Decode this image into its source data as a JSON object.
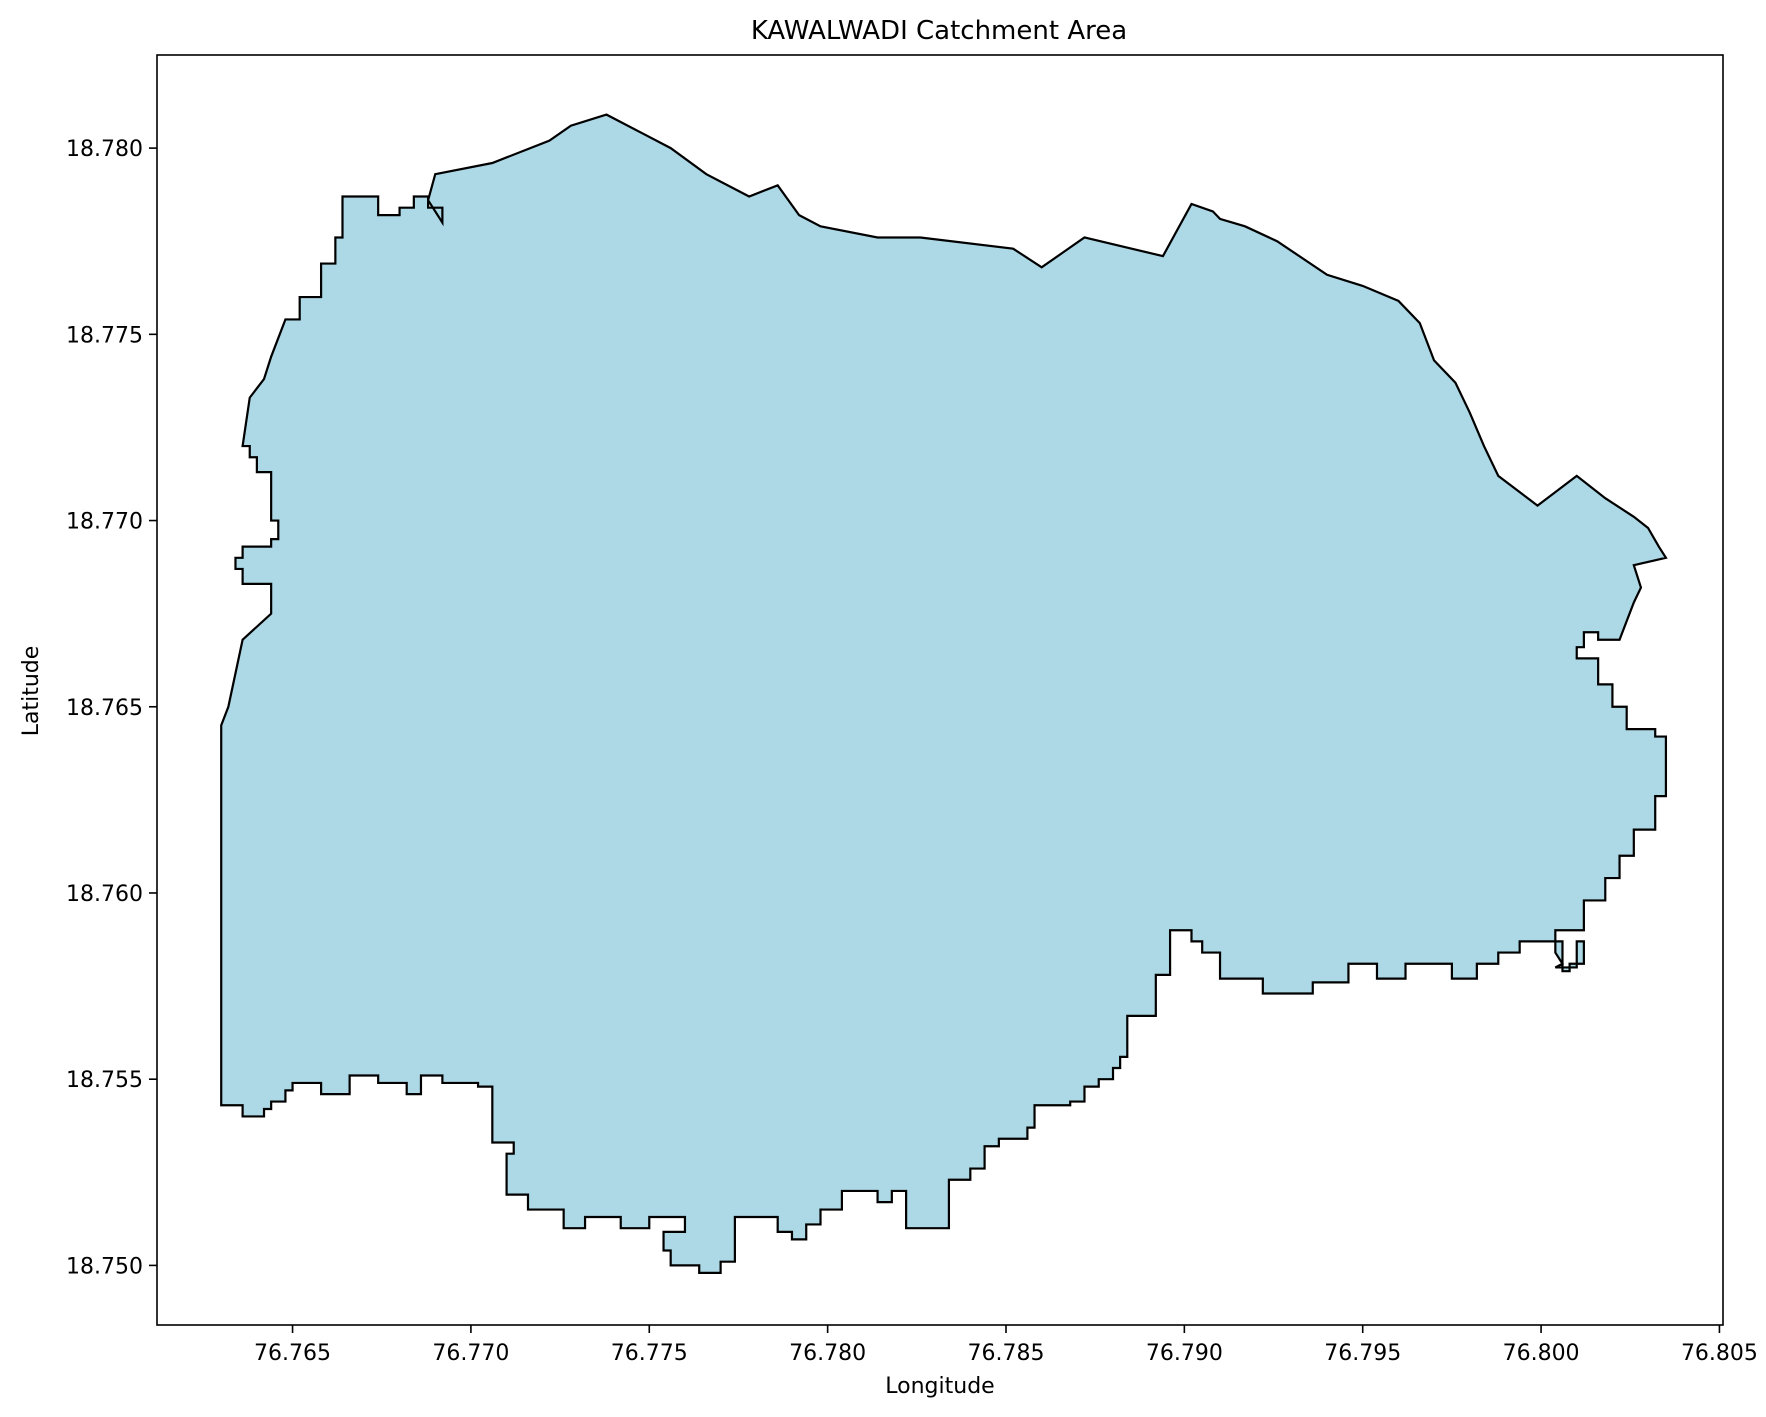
{
  "chart_data": {
    "type": "area",
    "title": "KAWALWADI Catchment Area",
    "xlabel": "Longitude",
    "ylabel": "Latitude",
    "xlim": [
      76.7612,
      76.8051
    ],
    "ylim": [
      18.7484,
      18.7825
    ],
    "xticks": [
      "76.765",
      "76.770",
      "76.775",
      "76.780",
      "76.785",
      "76.790",
      "76.795",
      "76.800",
      "76.805"
    ],
    "yticks": [
      "18.750",
      "18.755",
      "18.760",
      "18.765",
      "18.770",
      "18.775",
      "18.780"
    ],
    "grid": false,
    "fill_color": "#add8e6",
    "edge_color": "#000000",
    "series": [
      {
        "lon": [
          76.763,
          76.7632,
          76.7632,
          76.7636,
          76.7636,
          76.7642,
          76.7642,
          76.7644,
          76.7644,
          76.7648,
          76.7648,
          76.765,
          76.765,
          76.7658,
          76.7658,
          76.7666,
          76.7666,
          76.7674,
          76.7674,
          76.7682,
          76.7682,
          76.7686,
          76.7686,
          76.7692,
          76.7692,
          76.7702,
          76.7702,
          76.7706,
          76.7706,
          76.7712,
          76.7712,
          76.771,
          76.771,
          76.7716,
          76.7716,
          76.7726,
          76.7726,
          76.7732,
          76.7732,
          76.7736,
          76.7736,
          76.7742,
          76.7742,
          76.775,
          76.775,
          76.776,
          76.776,
          76.7754,
          76.7754,
          76.7756,
          76.7756,
          76.7764,
          76.7764,
          76.777,
          76.777,
          76.7774,
          76.7774,
          76.7786,
          76.7786,
          76.779,
          76.779,
          76.7794,
          76.7794,
          76.7798,
          76.7798,
          76.7804,
          76.7804,
          76.7814,
          76.7814,
          76.7818,
          76.7818,
          76.7822,
          76.7822,
          76.7822,
          76.7834,
          76.7834,
          76.784,
          76.784,
          76.7844,
          76.7844,
          76.7848,
          76.7848,
          76.7856,
          76.7856,
          76.7858,
          76.7858,
          76.7868,
          76.7868,
          76.7872,
          76.7872,
          76.7876,
          76.7876,
          76.788,
          76.788,
          76.7882,
          76.7882,
          76.7884,
          76.7884,
          76.7892,
          76.7892,
          76.7896,
          76.7896,
          76.7902,
          76.7902,
          76.7905,
          76.7905,
          76.791,
          76.791,
          76.7922,
          76.7922,
          76.7936,
          76.7936,
          76.7946,
          76.7946,
          76.7954,
          76.7954,
          76.7962,
          76.7962,
          76.7975,
          76.7975,
          76.7982,
          76.7982,
          76.7988,
          76.7988,
          76.7994,
          76.7994,
          76.8006,
          76.8006,
          76.8008,
          76.8008,
          76.8012,
          76.8012,
          76.801,
          76.801,
          76.8004,
          76.8004,
          76.8006,
          76.8006,
          76.8004,
          76.8004,
          76.8004,
          76.8012,
          76.8012,
          76.8018,
          76.8018,
          76.8022,
          76.8022,
          76.8026,
          76.8026,
          76.8032,
          76.8032,
          76.8035,
          76.8035,
          76.8032,
          76.8032,
          76.8024,
          76.8024,
          76.802,
          76.802,
          76.8016,
          76.8016,
          76.801,
          76.801,
          76.8012,
          76.8012,
          76.8016,
          76.8016,
          76.8022,
          76.8022,
          76.8026,
          76.8026,
          76.8028,
          76.8028,
          76.8026,
          76.8026,
          76.8035,
          76.8035,
          76.8033,
          76.8033,
          76.803,
          76.803,
          76.8026,
          76.8026,
          76.8018,
          76.8018,
          76.801,
          76.801,
          76.7999,
          76.7999,
          76.7988,
          76.7988,
          76.7984,
          76.7984,
          76.798,
          76.798,
          76.7976,
          76.7976,
          76.797,
          76.797,
          76.7966,
          76.7966,
          76.796,
          76.796,
          76.795,
          76.795,
          76.794,
          76.794,
          76.7926,
          76.7926,
          76.7917,
          76.7917,
          76.791,
          76.791,
          76.7908,
          76.7908,
          76.7902,
          76.7902,
          76.7894,
          76.7894,
          76.7872,
          76.7872,
          76.7866,
          76.7866,
          76.786,
          76.786,
          76.7852,
          76.7852,
          76.7826,
          76.7826,
          76.7814,
          76.7814,
          76.7798,
          76.7798,
          76.7792,
          76.7792,
          76.7786,
          76.7786,
          76.7778,
          76.7778,
          76.7766,
          76.7766,
          76.7756,
          76.7756,
          76.7748,
          76.7748,
          76.7738,
          76.7738,
          76.7728,
          76.7728,
          76.7722,
          76.7722,
          76.7706,
          76.7706,
          76.769,
          76.769,
          76.7688,
          76.7688,
          76.7692,
          76.7692,
          76.7692,
          76.7688,
          76.7688,
          76.7684,
          76.7684,
          76.768,
          76.768,
          76.7674,
          76.7674,
          76.7664,
          76.7664,
          76.7662,
          76.7662,
          76.7658,
          76.7658,
          76.7652,
          76.7652,
          76.7648,
          76.7648,
          76.7644,
          76.7644,
          76.7642,
          76.7642,
          76.7638,
          76.7638,
          76.7636,
          76.7636,
          76.7638,
          76.7638,
          76.764,
          76.764,
          76.7644,
          76.7644,
          76.7646,
          76.7646,
          76.7644,
          76.7644,
          76.7636,
          76.7636,
          76.7634,
          76.7634,
          76.7636,
          76.7636,
          76.7644,
          76.7644,
          76.7644,
          76.7636,
          76.7636,
          76.7632,
          76.7632,
          76.763,
          76.763
        ],
        "lat": [
          18.7543,
          18.7543,
          18.7543,
          18.7543,
          18.754,
          18.754,
          18.7542,
          18.7542,
          18.7544,
          18.7544,
          18.7547,
          18.7547,
          18.7549,
          18.7549,
          18.7546,
          18.7546,
          18.7551,
          18.7551,
          18.7549,
          18.7549,
          18.7546,
          18.7546,
          18.7551,
          18.7551,
          18.7549,
          18.7549,
          18.7548,
          18.7548,
          18.7533,
          18.7533,
          18.753,
          18.753,
          18.7519,
          18.7519,
          18.7515,
          18.7515,
          18.751,
          18.751,
          18.7513,
          18.7513,
          18.7513,
          18.7513,
          18.751,
          18.751,
          18.7513,
          18.7513,
          18.7509,
          18.7509,
          18.7504,
          18.7504,
          18.75,
          18.75,
          18.7498,
          18.7498,
          18.7501,
          18.7501,
          18.7513,
          18.7513,
          18.7509,
          18.7509,
          18.7507,
          18.7507,
          18.7511,
          18.7511,
          18.7515,
          18.7515,
          18.752,
          18.752,
          18.7517,
          18.7517,
          18.752,
          18.752,
          18.7517,
          18.751,
          18.751,
          18.7523,
          18.7523,
          18.7526,
          18.7526,
          18.7532,
          18.7532,
          18.7534,
          18.7534,
          18.7537,
          18.7537,
          18.7543,
          18.7543,
          18.7544,
          18.7544,
          18.7548,
          18.7548,
          18.755,
          18.755,
          18.7553,
          18.7553,
          18.7556,
          18.7556,
          18.7567,
          18.7567,
          18.7578,
          18.7578,
          18.759,
          18.759,
          18.7587,
          18.7587,
          18.7584,
          18.7584,
          18.7577,
          18.7577,
          18.7573,
          18.7573,
          18.7576,
          18.7576,
          18.7581,
          18.7581,
          18.7577,
          18.7577,
          18.7581,
          18.7581,
          18.7577,
          18.7577,
          18.7581,
          18.7581,
          18.7584,
          18.7584,
          18.7587,
          18.7587,
          18.7579,
          18.7579,
          18.7581,
          18.7581,
          18.7587,
          18.7587,
          18.758,
          18.758,
          18.758,
          18.7581,
          18.7581,
          18.7584,
          18.7584,
          18.759,
          18.759,
          18.7598,
          18.7598,
          18.7604,
          18.7604,
          18.761,
          18.761,
          18.7617,
          18.7617,
          18.7626,
          18.7626,
          18.7642,
          18.7642,
          18.7644,
          18.7644,
          18.765,
          18.765,
          18.7656,
          18.7656,
          18.7663,
          18.7663,
          18.7666,
          18.7666,
          18.767,
          18.767,
          18.7668,
          18.7668,
          18.7668,
          18.7678,
          18.7678,
          18.7682,
          18.7682,
          18.7688,
          18.7688,
          18.769,
          18.769,
          18.7693,
          18.7693,
          18.7698,
          18.7698,
          18.7701,
          18.7701,
          18.7706,
          18.7706,
          18.7712,
          18.7712,
          18.7704,
          18.7704,
          18.7712,
          18.7712,
          18.772,
          18.772,
          18.7729,
          18.7729,
          18.7737,
          18.7737,
          18.7743,
          18.7743,
          18.7753,
          18.7753,
          18.7759,
          18.7759,
          18.7763,
          18.7763,
          18.7766,
          18.7766,
          18.7775,
          18.7775,
          18.7779,
          18.7779,
          18.7781,
          18.7781,
          18.7783,
          18.7783,
          18.7785,
          18.7785,
          18.7771,
          18.7771,
          18.7776,
          18.7776,
          18.7772,
          18.7772,
          18.7768,
          18.7768,
          18.7773,
          18.7773,
          18.7776,
          18.7776,
          18.7776,
          18.7776,
          18.7779,
          18.7779,
          18.7782,
          18.7782,
          18.779,
          18.779,
          18.7787,
          18.7787,
          18.7793,
          18.7793,
          18.78,
          18.78,
          18.7804,
          18.7804,
          18.7809,
          18.7809,
          18.7806,
          18.7806,
          18.7802,
          18.7802,
          18.7796,
          18.7796,
          18.7793,
          18.7793,
          18.7786,
          18.7786,
          18.778,
          18.778,
          18.7784,
          18.7784,
          18.7787,
          18.7787,
          18.7784,
          18.7784,
          18.7782,
          18.7782,
          18.7787,
          18.7787,
          18.7776,
          18.7776,
          18.7769,
          18.7769,
          18.776,
          18.776,
          18.7754,
          18.7754,
          18.7754,
          18.7744,
          18.7744,
          18.7738,
          18.7738,
          18.7733,
          18.7733,
          18.772,
          18.772,
          18.772,
          18.7717,
          18.7717,
          18.7713,
          18.7713,
          18.77,
          18.77,
          18.7695,
          18.7695,
          18.7693,
          18.7693,
          18.769,
          18.769,
          18.7687,
          18.7687,
          18.7683,
          18.7683,
          18.7675,
          18.7675,
          18.7668,
          18.7668,
          18.765,
          18.765,
          18.7645,
          18.7645,
          18.7633,
          18.7633,
          18.762,
          18.762,
          18.7607,
          18.7607,
          18.7597,
          18.7597,
          18.7587,
          18.7587,
          18.7579,
          18.7579,
          18.7576,
          18.7576,
          18.7559,
          18.7559,
          18.7555,
          18.7555,
          18.755,
          18.755,
          18.7543
        ]
      }
    ]
  }
}
